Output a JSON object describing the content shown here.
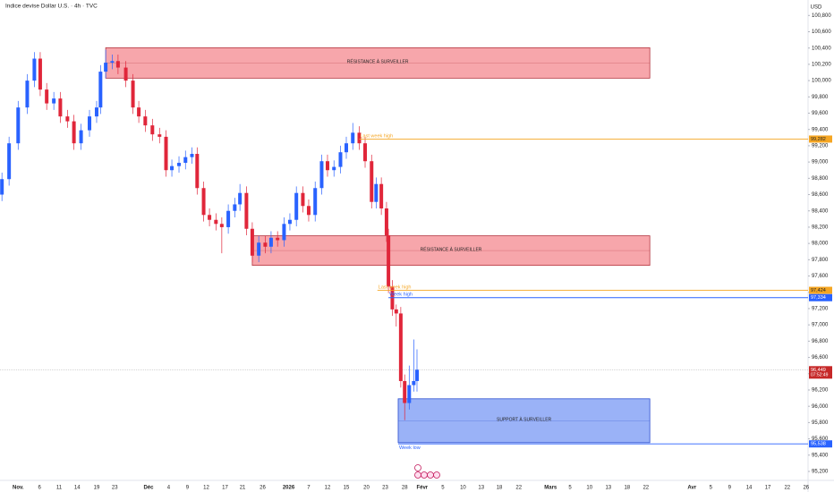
{
  "chart_data": {
    "type": "candlestick",
    "title": "Indice devise Dollar U.S. · 4h · TVC",
    "currency": "USD",
    "up_color": "#2962ff",
    "down_color": "#e0263a",
    "xlim": [
      -2.8,
      121.8
    ],
    "ylim": [
      95090,
      100990
    ],
    "xticks": [
      {
        "value": 0,
        "label": "Nov."
      },
      {
        "value": 3.3,
        "label": "6"
      },
      {
        "value": 6.3,
        "label": "11"
      },
      {
        "value": 9.1,
        "label": "14"
      },
      {
        "value": 12.1,
        "label": "19"
      },
      {
        "value": 14.9,
        "label": "23"
      },
      {
        "value": 20.1,
        "label": "Déc"
      },
      {
        "value": 23.2,
        "label": "4"
      },
      {
        "value": 26.1,
        "label": "9"
      },
      {
        "value": 29,
        "label": "12"
      },
      {
        "value": 31.9,
        "label": "17"
      },
      {
        "value": 34.6,
        "label": "21"
      },
      {
        "value": 37.7,
        "label": "26"
      },
      {
        "value": 41.7,
        "label": "2026"
      },
      {
        "value": 44.8,
        "label": "7"
      },
      {
        "value": 47.7,
        "label": "12"
      },
      {
        "value": 50.6,
        "label": "15"
      },
      {
        "value": 53.7,
        "label": "20"
      },
      {
        "value": 56.6,
        "label": "23"
      },
      {
        "value": 59.6,
        "label": "28"
      },
      {
        "value": 62.3,
        "label": "Févr"
      },
      {
        "value": 65.5,
        "label": "5"
      },
      {
        "value": 68.6,
        "label": "10"
      },
      {
        "value": 71.4,
        "label": "13"
      },
      {
        "value": 74.2,
        "label": "18"
      },
      {
        "value": 77.2,
        "label": "22"
      },
      {
        "value": 82.1,
        "label": "Mars"
      },
      {
        "value": 85.1,
        "label": "5"
      },
      {
        "value": 88.1,
        "label": "10"
      },
      {
        "value": 91,
        "label": "13"
      },
      {
        "value": 93.9,
        "label": "18"
      },
      {
        "value": 96.8,
        "label": "22"
      },
      {
        "value": 103.9,
        "label": "Avr"
      },
      {
        "value": 106.8,
        "label": "5"
      },
      {
        "value": 109.7,
        "label": "9"
      },
      {
        "value": 112.7,
        "label": "14"
      },
      {
        "value": 115.6,
        "label": "17"
      },
      {
        "value": 118.6,
        "label": "22"
      },
      {
        "value": 121.5,
        "label": "26"
      }
    ],
    "yticks": [
      {
        "value": 95200,
        "label": "95,200"
      },
      {
        "value": 95400,
        "label": "95,400"
      },
      {
        "value": 95600,
        "label": "95,600"
      },
      {
        "value": 95800,
        "label": "95,800"
      },
      {
        "value": 96000,
        "label": "96,000"
      },
      {
        "value": 96200,
        "label": "96,200"
      },
      {
        "value": 96400,
        "label": "96,400"
      },
      {
        "value": 96600,
        "label": "96,600"
      },
      {
        "value": 96800,
        "label": "96,800"
      },
      {
        "value": 97000,
        "label": "97,000"
      },
      {
        "value": 97200,
        "label": "97,200"
      },
      {
        "value": 97400,
        "label": "97,400"
      },
      {
        "value": 97600,
        "label": "97,600"
      },
      {
        "value": 97800,
        "label": "97,800"
      },
      {
        "value": 98000,
        "label": "98,000"
      },
      {
        "value": 98200,
        "label": "98,200"
      },
      {
        "value": 98400,
        "label": "98,400"
      },
      {
        "value": 98600,
        "label": "98,600"
      },
      {
        "value": 98800,
        "label": "98,800"
      },
      {
        "value": 99000,
        "label": "99,000"
      },
      {
        "value": 99200,
        "label": "99,200"
      },
      {
        "value": 99400,
        "label": "99,400"
      },
      {
        "value": 99600,
        "label": "99,600"
      },
      {
        "value": 99800,
        "label": "99,800"
      },
      {
        "value": 100000,
        "label": "100,000"
      },
      {
        "value": 100200,
        "label": "100,200"
      },
      {
        "value": 100400,
        "label": "100,400"
      },
      {
        "value": 100600,
        "label": "100,600"
      },
      {
        "value": 100800,
        "label": "100,800"
      }
    ],
    "x": [
      -2.5,
      -1.4,
      0,
      1.4,
      2.5,
      3.4,
      4.4,
      5.5,
      6.5,
      7.6,
      8.6,
      9.7,
      11.0,
      12.1,
      12.7,
      13.5,
      14.5,
      15.4,
      16.6,
      17.7,
      18.6,
      19.6,
      20.7,
      21.8,
      22.8,
      23.7,
      24.8,
      25.8,
      26.8,
      27.6,
      28.6,
      29.5,
      30.5,
      31.4,
      32.4,
      33.4,
      34.2,
      35.2,
      36.1,
      37.1,
      38.1,
      39.0,
      40.0,
      41.0,
      41.9,
      42.9,
      43.9,
      44.8,
      45.8,
      46.8,
      47.7,
      48.7,
      49.7,
      50.6,
      51.6,
      52.6,
      53.5,
      54.5,
      55.2,
      56.0,
      56.8,
      57.1,
      57.7,
      58.3,
      59.0,
      59.6,
      60.3,
      61.0,
      61.5
    ],
    "open": [
      98600,
      98790,
      99230,
      99670,
      100000,
      100270,
      99890,
      99720,
      99780,
      99560,
      99500,
      99230,
      99390,
      99560,
      99670,
      100110,
      100220,
      100240,
      100160,
      100000,
      99670,
      99560,
      99450,
      99340,
      99310,
      98900,
      98950,
      98990,
      99060,
      99100,
      98680,
      98350,
      98290,
      98240,
      98200,
      98400,
      98480,
      98620,
      98180,
      97850,
      98010,
      97960,
      98070,
      98040,
      98240,
      98290,
      98620,
      98460,
      98350,
      98680,
      99010,
      98900,
      98940,
      99120,
      99230,
      99360,
      99230,
      99010,
      98510,
      98730,
      98430,
      98100,
      97470,
      97190,
      97140,
      96310,
      96040,
      96260,
      96310
    ],
    "high": [
      98870,
      99310,
      99750,
      100080,
      100350,
      100350,
      99970,
      99860,
      99860,
      99640,
      99580,
      99470,
      99640,
      99750,
      100190,
      100380,
      100320,
      100320,
      100240,
      100080,
      99750,
      99640,
      99530,
      99420,
      99390,
      99030,
      99070,
      99140,
      99180,
      99180,
      98760,
      98430,
      98370,
      98320,
      98480,
      98560,
      98730,
      98700,
      98260,
      98090,
      98090,
      98150,
      98150,
      98320,
      98370,
      98700,
      98700,
      98540,
      98760,
      99090,
      99090,
      99020,
      99200,
      99310,
      99480,
      99440,
      99310,
      99090,
      98810,
      98810,
      98510,
      98180,
      97550,
      97250,
      97220,
      96390,
      96500,
      96820,
      96700
    ],
    "low": [
      98520,
      98710,
      99150,
      99590,
      99920,
      99810,
      99640,
      99640,
      99480,
      99420,
      99150,
      99150,
      99310,
      99480,
      99590,
      100030,
      100140,
      100080,
      99920,
      99590,
      99480,
      99370,
      99260,
      99230,
      98820,
      98820,
      98870,
      98910,
      98980,
      98600,
      98270,
      98210,
      98160,
      97880,
      98120,
      98320,
      98400,
      98100,
      97770,
      97770,
      97880,
      97880,
      97960,
      97960,
      98160,
      98210,
      98380,
      98270,
      98270,
      98600,
      98820,
      98820,
      98860,
      99040,
      99150,
      99150,
      98930,
      98430,
      98430,
      98350,
      98020,
      97390,
      97110,
      96980,
      96230,
      95830,
      95960,
      96180,
      96180
    ],
    "close": [
      98790,
      99230,
      99670,
      100000,
      100270,
      99890,
      99720,
      99780,
      99560,
      99500,
      99230,
      99390,
      99560,
      99670,
      100110,
      100220,
      100240,
      100160,
      100000,
      99670,
      99560,
      99450,
      99340,
      99310,
      98900,
      98950,
      98990,
      99060,
      99100,
      98680,
      98350,
      98290,
      98240,
      98200,
      98400,
      98480,
      98620,
      98180,
      97850,
      98010,
      97960,
      98070,
      98040,
      98240,
      98290,
      98620,
      98460,
      98350,
      98680,
      99010,
      98900,
      98940,
      99120,
      99230,
      99360,
      99230,
      99010,
      98510,
      98730,
      98430,
      98100,
      97470,
      97190,
      97140,
      96310,
      96040,
      96260,
      96310,
      96449
    ],
    "zones": [
      {
        "label": "RÉSISTANCE À SURVEILLER",
        "x0": 13.5,
        "x1": 97.4,
        "top": 100404,
        "bottom": 100030,
        "color": "#f7a1a7",
        "border": "#b3343f"
      },
      {
        "label": "RÉSISTANCE À SURVEILLER",
        "x0": 36.1,
        "x1": 97.4,
        "top": 98094,
        "bottom": 97731,
        "color": "#f7a1a7",
        "border": "#b3343f"
      },
      {
        "label": "SUPPORT À SURVEILLER",
        "x0": 58.6,
        "x1": 97.4,
        "top": 96092,
        "bottom": 95553,
        "color": "#95aef7",
        "border": "#2d4fd0"
      }
    ],
    "levels": [
      {
        "name": "Last week high",
        "value": 99282,
        "value_label": "99,282",
        "x0": 52.6,
        "color": "#f5a623"
      },
      {
        "name": "Last week high",
        "value": 97424,
        "value_label": "97,424",
        "x0": 55.4,
        "color": "#f5a623"
      },
      {
        "name": "Week high",
        "value": 97334,
        "value_label": "97,334",
        "x0": 57.1,
        "color": "#2962ff"
      },
      {
        "name": "Week low",
        "value": 95538,
        "value_label": "95,538",
        "x0": 58.6,
        "color": "#2962ff"
      }
    ],
    "last": {
      "value": 96449,
      "label": "96,449",
      "countdown": "07:52:49",
      "color": "#c62828"
    }
  }
}
